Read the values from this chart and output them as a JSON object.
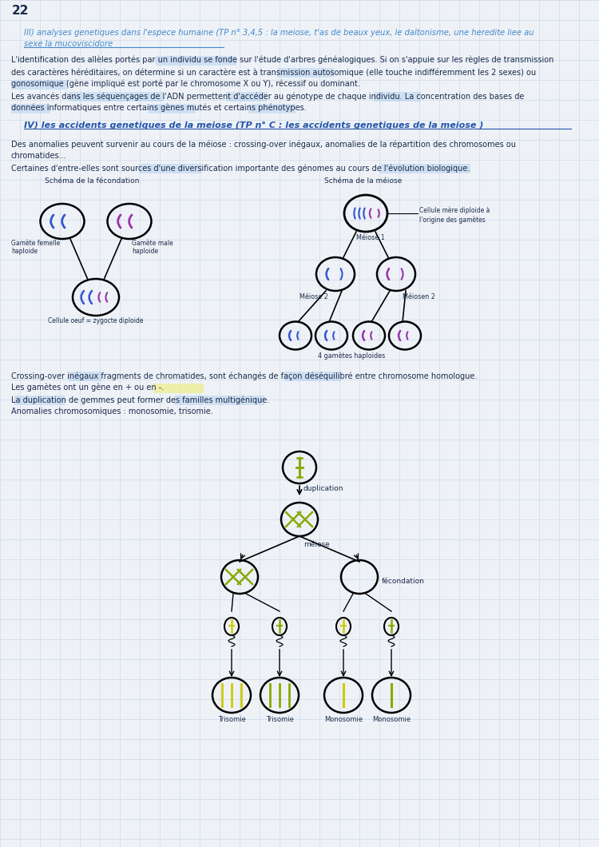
{
  "page_num": "22",
  "bg_color": "#eef2f7",
  "grid_color": "#c5d5e5",
  "title_III_line1": "III) analyses genetiques dans l'espece humaine (TP n° 3,4,5 : la meiose, t'as de beaux yeux, le daltonisme, une heredite liee au",
  "title_III_line2": "sexe la mucoviscidore",
  "para1_line1": "L'identification des allèles portés par un individu se fonde sur l'étude d'arbres généalogiques. Si on s'appuie sur les règles de transmission",
  "para1_line2": "des caractères héréditaires, on détermine si un caractère est à transmission autosomique (elle touche indifféremment les 2 sexes) ou",
  "para1_line3": "gonosomique (gène impliqué est porté par le chromosome X ou Y), récessif ou dominant.",
  "para1_line4": "Les avancés dans les séquençages de l'ADN permettent d'accéder au génotype de chaque individu. La concentration des bases de",
  "para1_line5": "données informatiques entre certains gènes mutés et certains phénotypes.",
  "title_IV": "IV) les accidents genetiques de la meiose (TP n° C : les accidents genetiques de la meiose )",
  "para2_line1": "Des anomalies peuvent survenir au cours de la méiose : crossing-over inégaux, anomalies de la répartition des chromosomes ou",
  "para2_line2": "chromatides...",
  "para2_line3": "Certaines d'entre-elles sont sources d'une diversification importante des génomes au cours de l'évolution biologique.",
  "label_schema_fecondation": "Schéma de la fécondation",
  "label_schema_meiose": "Schéma de la méiose",
  "label_gamete_femelle": "Gamète femelle\nhaploide",
  "label_gamete_male": "Gamète male\nhaploide",
  "label_cellule_oeuf": "Cellule oeuf = zygocte diploide",
  "label_cellule_mere": "Cellule mère diploide à\nl'origine des gamètes",
  "label_meiose1": "Méiose 1",
  "label_meiose2a": "Méiose 2",
  "label_meiose2b": "Méiosen 2",
  "label_4gametes": "4 gamètes haploides",
  "para3_line1": "Crossing-over inégaux fragments de chromatides, sont échangés de façon déséquilibré entre chromosome homologue.",
  "para3_line2": "Les gamètes ont un gène en + ou en -.",
  "para3_line3": "La duplication de gemmes peut former des familles multigénique.",
  "para3_line4": "Anomalies chromosomiques : monosomie, trisomie.",
  "label_duplication": "duplication",
  "label_meiose_lower": "méiose",
  "label_fecondation_lower": "fécondation",
  "label_trisomie1": "Trisomie",
  "label_trisomie2": "Trisomie",
  "label_monosomie1": "Monosomie",
  "label_monosomie2": "Monosomie",
  "blue_dark": "#1a3a6b",
  "blue_mid": "#2255aa",
  "blue_chr": "#3355cc",
  "purple_chr": "#9933aa",
  "green_chr": "#88aa00",
  "green_dark": "#336633",
  "yellow_chr": "#cccc00",
  "blue_light": "#4488cc",
  "highlight_blue": "#aaccee",
  "highlight_yellow": "#eeee88",
  "text_color": "#1a2a4a",
  "lh": 15
}
